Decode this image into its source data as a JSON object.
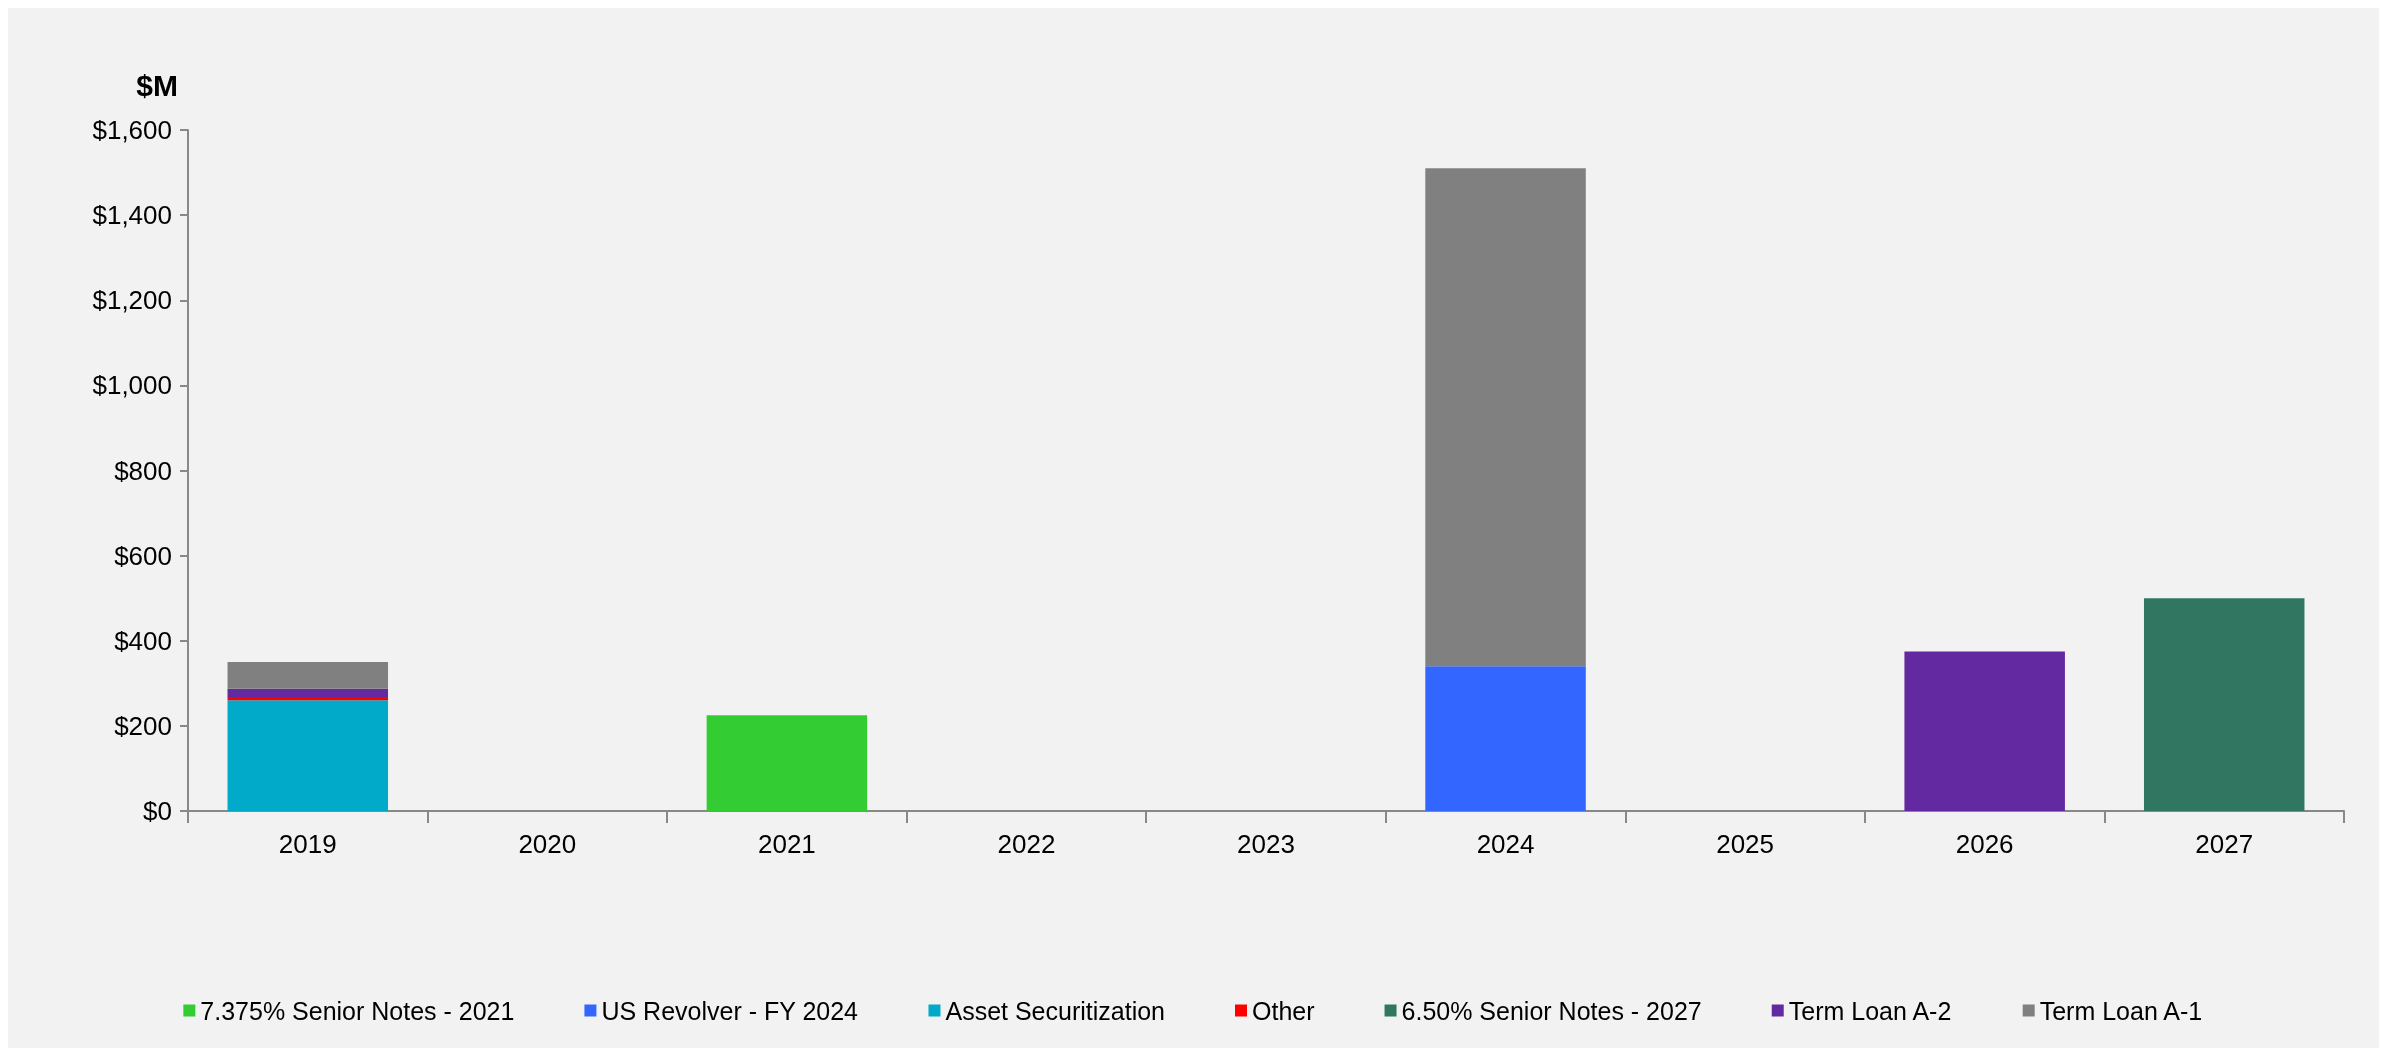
{
  "chart_data": {
    "type": "bar",
    "stacked": true,
    "ylabel": "$M",
    "categories": [
      "2019",
      "2020",
      "2021",
      "2022",
      "2023",
      "2024",
      "2025",
      "2026",
      "2027"
    ],
    "series": [
      {
        "name": "7.375% Senior Notes - 2021",
        "color": "#33cc33",
        "values": [
          null,
          null,
          225,
          null,
          null,
          null,
          null,
          null,
          null
        ]
      },
      {
        "name": "US Revolver - FY 2024",
        "color": "#3366ff",
        "values": [
          null,
          null,
          null,
          null,
          null,
          340,
          null,
          null,
          null
        ]
      },
      {
        "name": "Asset Securitization",
        "color": "#00aac8",
        "values": [
          260,
          null,
          null,
          null,
          null,
          null,
          null,
          null,
          null
        ]
      },
      {
        "name": "Other",
        "color": "#ff0000",
        "values": [
          8,
          null,
          null,
          null,
          null,
          null,
          null,
          null,
          null
        ]
      },
      {
        "name": "6.50% Senior Notes - 2027",
        "color": "#317660",
        "values": [
          null,
          null,
          null,
          null,
          null,
          null,
          null,
          null,
          500
        ]
      },
      {
        "name": "Term Loan A-2",
        "color": "#6329a0",
        "values": [
          19,
          null,
          null,
          null,
          null,
          null,
          null,
          375,
          null
        ]
      },
      {
        "name": "Term Loan A-1",
        "color": "#808080",
        "values": [
          63,
          null,
          null,
          null,
          null,
          1170,
          null,
          null,
          null
        ]
      }
    ],
    "ylim": [
      0,
      1600
    ],
    "yticks": [
      {
        "value": 0,
        "label": "$0"
      },
      {
        "value": 200,
        "label": "$200"
      },
      {
        "value": 400,
        "label": "$400"
      },
      {
        "value": 600,
        "label": "$600"
      },
      {
        "value": 800,
        "label": "$800"
      },
      {
        "value": 1000,
        "label": "$1,000"
      },
      {
        "value": 1200,
        "label": "$1,200"
      },
      {
        "value": 1400,
        "label": "$1,400"
      },
      {
        "value": 1600,
        "label": "$1,600"
      }
    ],
    "grid": false,
    "legend": "bottom"
  }
}
